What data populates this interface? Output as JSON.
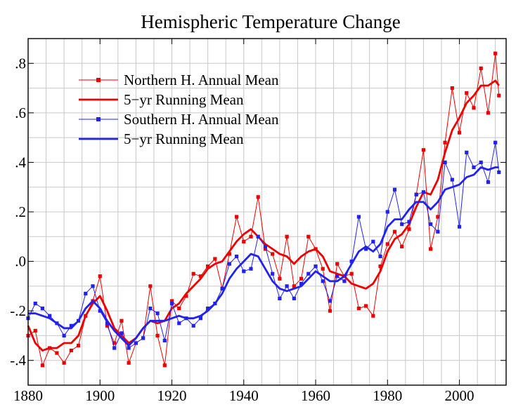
{
  "chart_data": {
    "type": "line",
    "title": "Hemispheric Temperature Change",
    "xlabel": "",
    "ylabel": "",
    "xlim": [
      1880,
      2013
    ],
    "ylim": [
      -0.5,
      0.9
    ],
    "x_ticks": [
      1880,
      1900,
      1920,
      1940,
      1960,
      1980,
      2000
    ],
    "x_tick_labels": [
      "1880",
      "1900",
      "1920",
      "1940",
      "1960",
      "1980",
      "2000"
    ],
    "y_ticks": [
      -0.4,
      -0.2,
      0.0,
      0.2,
      0.4,
      0.6,
      0.8
    ],
    "y_tick_labels": [
      "-.4",
      "-.2",
      ".0",
      ".2",
      ".4",
      ".6",
      ".8"
    ],
    "grid": true,
    "legend_position": "top-left",
    "x": [
      1880,
      1882,
      1884,
      1886,
      1888,
      1890,
      1892,
      1894,
      1896,
      1898,
      1900,
      1902,
      1904,
      1906,
      1908,
      1910,
      1912,
      1914,
      1916,
      1918,
      1920,
      1922,
      1924,
      1926,
      1928,
      1930,
      1932,
      1934,
      1936,
      1938,
      1940,
      1942,
      1944,
      1946,
      1948,
      1950,
      1952,
      1954,
      1956,
      1958,
      1960,
      1962,
      1964,
      1966,
      1968,
      1970,
      1972,
      1974,
      1976,
      1978,
      1980,
      1982,
      1984,
      1986,
      1988,
      1990,
      1992,
      1994,
      1996,
      1998,
      2000,
      2002,
      2004,
      2006,
      2008,
      2010,
      2011
    ],
    "series": [
      {
        "name": "Northern H. Annual Mean",
        "color": "#ee0000",
        "style": "thin-line-square-markers",
        "values": [
          -0.3,
          -0.28,
          -0.42,
          -0.35,
          -0.37,
          -0.41,
          -0.36,
          -0.34,
          -0.22,
          -0.16,
          -0.06,
          -0.26,
          -0.33,
          -0.24,
          -0.41,
          -0.33,
          -0.31,
          -0.1,
          -0.3,
          -0.42,
          -0.16,
          -0.19,
          -0.14,
          -0.05,
          -0.06,
          -0.02,
          0.01,
          -0.11,
          0.03,
          0.18,
          0.08,
          0.1,
          0.26,
          0.05,
          0.03,
          -0.07,
          0.1,
          -0.1,
          -0.07,
          0.1,
          0.05,
          -0.03,
          -0.2,
          -0.01,
          -0.06,
          -0.05,
          -0.19,
          -0.18,
          -0.22,
          -0.02,
          0.07,
          0.12,
          0.06,
          0.13,
          0.27,
          0.45,
          0.05,
          0.18,
          0.48,
          0.7,
          0.52,
          0.68,
          0.62,
          0.78,
          0.6,
          0.84,
          0.67
        ]
      },
      {
        "name": "5−yr Running Mean",
        "color": "#ee0000",
        "style": "thick-line",
        "values": [
          -0.26,
          -0.33,
          -0.36,
          -0.35,
          -0.35,
          -0.33,
          -0.33,
          -0.3,
          -0.22,
          -0.17,
          -0.14,
          -0.2,
          -0.27,
          -0.3,
          -0.33,
          -0.31,
          -0.27,
          -0.24,
          -0.25,
          -0.24,
          -0.19,
          -0.17,
          -0.13,
          -0.1,
          -0.07,
          -0.03,
          -0.01,
          0.0,
          0.04,
          0.08,
          0.11,
          0.13,
          0.1,
          0.07,
          0.05,
          0.03,
          0.02,
          -0.01,
          0.02,
          0.04,
          0.05,
          0.02,
          -0.04,
          -0.05,
          -0.06,
          -0.09,
          -0.1,
          -0.11,
          -0.09,
          -0.04,
          0.04,
          0.09,
          0.11,
          0.15,
          0.22,
          0.28,
          0.27,
          0.33,
          0.44,
          0.53,
          0.58,
          0.64,
          0.67,
          0.71,
          0.71,
          0.73,
          0.71
        ]
      },
      {
        "name": "Southern H. Annual Mean",
        "color": "#2222ee",
        "style": "thin-line-square-markers",
        "values": [
          -0.23,
          -0.17,
          -0.19,
          -0.22,
          -0.25,
          -0.3,
          -0.26,
          -0.24,
          -0.13,
          -0.1,
          -0.2,
          -0.25,
          -0.35,
          -0.29,
          -0.35,
          -0.33,
          -0.31,
          -0.19,
          -0.21,
          -0.32,
          -0.17,
          -0.25,
          -0.23,
          -0.26,
          -0.23,
          -0.19,
          -0.17,
          -0.11,
          -0.01,
          0.02,
          -0.04,
          -0.03,
          0.1,
          0.06,
          -0.05,
          -0.15,
          -0.1,
          -0.15,
          -0.09,
          -0.05,
          -0.02,
          -0.08,
          -0.16,
          -0.06,
          -0.08,
          0.0,
          0.18,
          0.05,
          0.08,
          0.02,
          0.2,
          0.29,
          0.15,
          0.16,
          0.27,
          0.28,
          0.15,
          0.12,
          0.4,
          0.33,
          0.14,
          0.44,
          0.38,
          0.4,
          0.32,
          0.48,
          0.36
        ]
      },
      {
        "name": "5−yr Running Mean",
        "color": "#2222ee",
        "style": "thick-line",
        "values": [
          -0.21,
          -0.21,
          -0.22,
          -0.23,
          -0.25,
          -0.27,
          -0.27,
          -0.24,
          -0.19,
          -0.16,
          -0.19,
          -0.24,
          -0.28,
          -0.31,
          -0.34,
          -0.31,
          -0.27,
          -0.24,
          -0.24,
          -0.24,
          -0.23,
          -0.22,
          -0.23,
          -0.23,
          -0.22,
          -0.2,
          -0.17,
          -0.13,
          -0.07,
          -0.03,
          0.0,
          0.03,
          0.02,
          -0.03,
          -0.08,
          -0.11,
          -0.12,
          -0.11,
          -0.1,
          -0.07,
          -0.04,
          -0.06,
          -0.08,
          -0.08,
          -0.06,
          -0.01,
          0.04,
          0.06,
          0.04,
          0.07,
          0.14,
          0.17,
          0.17,
          0.21,
          0.24,
          0.24,
          0.21,
          0.24,
          0.29,
          0.3,
          0.31,
          0.34,
          0.35,
          0.38,
          0.37,
          0.38,
          0.38
        ]
      }
    ]
  }
}
